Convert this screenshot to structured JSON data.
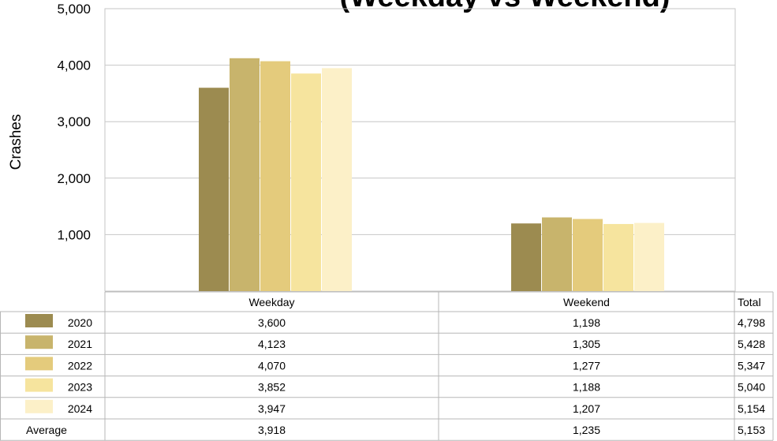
{
  "chart_data": {
    "type": "bar",
    "title": "(Weekday vs Weekend)",
    "xlabel": "",
    "ylabel": "Crashes",
    "ylim": [
      0,
      5000
    ],
    "yticks": [
      "1,000",
      "2,000",
      "3,000",
      "4,000",
      "5,000"
    ],
    "grid": true,
    "legend": "data-table-left",
    "categories": [
      "Weekday",
      "Weekend"
    ],
    "series": [
      {
        "name": "2020",
        "values": [
          3600,
          1198
        ],
        "color": "#9c8b50"
      },
      {
        "name": "2021",
        "values": [
          4123,
          1305
        ],
        "color": "#c8b46c"
      },
      {
        "name": "2022",
        "values": [
          4070,
          1277
        ],
        "color": "#e4cb7c"
      },
      {
        "name": "2023",
        "values": [
          3852,
          1188
        ],
        "color": "#f6e49e"
      },
      {
        "name": "2024",
        "values": [
          3947,
          1207
        ],
        "color": "#fcf0c8"
      }
    ],
    "table": {
      "total_header": "Total",
      "rows": [
        {
          "label": "2020",
          "cells": [
            "3,600",
            "1,198"
          ],
          "total": "4,798"
        },
        {
          "label": "2021",
          "cells": [
            "4,123",
            "1,305"
          ],
          "total": "5,428"
        },
        {
          "label": "2022",
          "cells": [
            "4,070",
            "1,277"
          ],
          "total": "5,347"
        },
        {
          "label": "2023",
          "cells": [
            "3,852",
            "1,188"
          ],
          "total": "5,040"
        },
        {
          "label": "2024",
          "cells": [
            "3,947",
            "1,207"
          ],
          "total": "5,154"
        },
        {
          "label": "Average",
          "cells": [
            "3,918",
            "1,235"
          ],
          "total": "5,153"
        }
      ]
    }
  }
}
